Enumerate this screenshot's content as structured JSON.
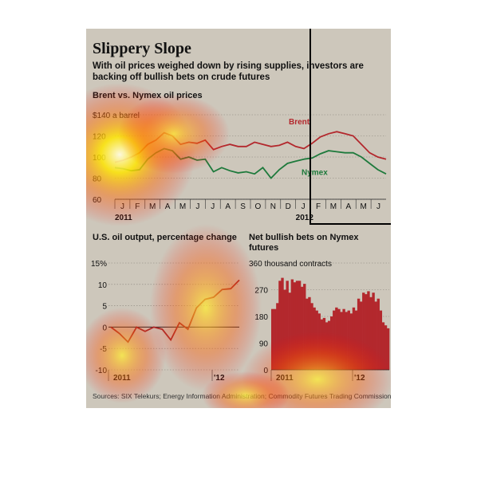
{
  "title": "Slippery Slope",
  "dek": "With oil prices weighed down by rising supplies, investors are backing off bullish bets on crude futures",
  "source": "Sources: SIX Telekurs; Energy Information Administration; Commodity Futures Trading Commission",
  "colors": {
    "background": "#cdc7bb",
    "brent": "#b3282d",
    "nymex": "#1e7a3c",
    "bars": "#b3282d",
    "line": "#a52a2a"
  },
  "chart_data": [
    {
      "type": "line",
      "title": "Brent vs. Nymex oil prices",
      "ylabel": "",
      "ytick_labels": [
        "$140 a barrel",
        "120",
        "100",
        "80",
        "60"
      ],
      "yticks": [
        140,
        120,
        100,
        80,
        60
      ],
      "ylim": [
        60,
        140
      ],
      "month_labels": [
        "J",
        "F",
        "M",
        "A",
        "M",
        "J",
        "J",
        "A",
        "S",
        "O",
        "N",
        "D",
        "J",
        "F",
        "M",
        "A",
        "M",
        "J"
      ],
      "year_labels": [
        "2011",
        "2012"
      ],
      "grid": true,
      "series": [
        {
          "name": "Brent",
          "values": [
            95,
            97,
            100,
            104,
            112,
            116,
            123,
            120,
            112,
            114,
            113,
            116,
            107,
            110,
            112,
            110,
            110,
            114,
            112,
            110,
            111,
            114,
            110,
            108,
            113,
            119,
            122,
            124,
            122,
            120,
            112,
            104,
            100,
            98
          ]
        },
        {
          "name": "Nymex",
          "values": [
            90,
            89,
            87,
            88,
            98,
            104,
            108,
            106,
            98,
            100,
            97,
            98,
            86,
            90,
            87,
            85,
            86,
            84,
            90,
            80,
            88,
            94,
            96,
            98,
            99,
            103,
            106,
            105,
            104,
            104,
            100,
            94,
            88,
            84
          ]
        }
      ]
    },
    {
      "type": "line",
      "title": "U.S. oil output, percentage change",
      "ytick_labels": [
        "15%",
        "10",
        "5",
        "0",
        "-5",
        "-10"
      ],
      "yticks": [
        15,
        10,
        5,
        0,
        -5,
        -10
      ],
      "ylim": [
        -10,
        15
      ],
      "xtick_labels": [
        "2011",
        "'12"
      ],
      "series": [
        {
          "values": [
            0,
            -1.5,
            -3.5,
            0,
            -1,
            0,
            -0.5,
            -3,
            1,
            -0.5,
            4.5,
            6.5,
            7,
            8.8,
            9,
            11
          ]
        }
      ]
    },
    {
      "type": "bar",
      "title": "Net bullish bets on Nymex futures",
      "ytick_labels": [
        "360 thousand contracts",
        "270",
        "180",
        "90",
        "0"
      ],
      "yticks": [
        360,
        270,
        180,
        90,
        0
      ],
      "ylim": [
        0,
        360
      ],
      "xtick_labels": [
        "2011",
        "'12"
      ],
      "values": [
        205,
        205,
        225,
        300,
        310,
        270,
        300,
        260,
        305,
        295,
        300,
        300,
        280,
        290,
        240,
        245,
        225,
        210,
        200,
        190,
        170,
        175,
        160,
        165,
        180,
        200,
        210,
        205,
        195,
        205,
        195,
        200,
        190,
        210,
        200,
        240,
        230,
        260,
        255,
        265,
        245,
        260,
        230,
        240,
        200,
        160,
        150,
        140
      ]
    }
  ]
}
